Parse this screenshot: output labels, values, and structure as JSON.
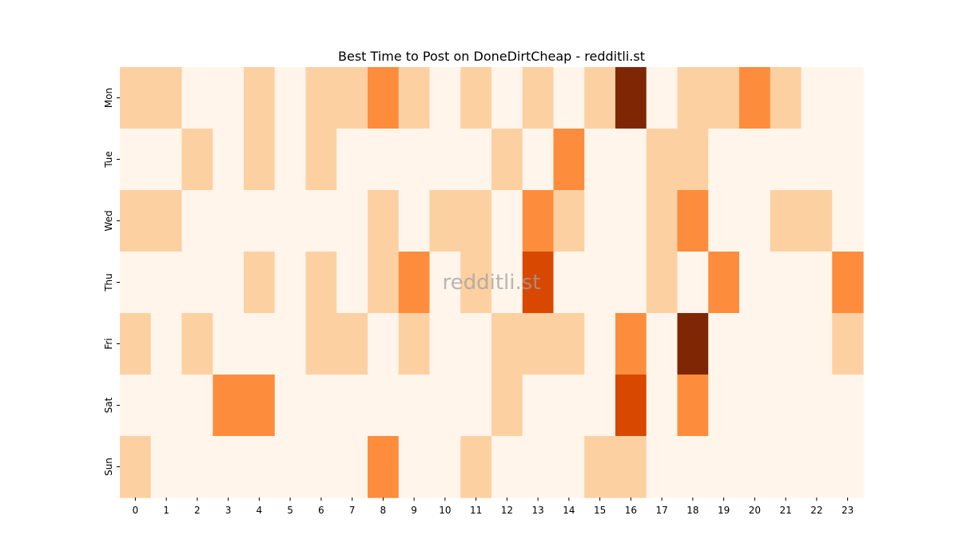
{
  "chart_data": {
    "type": "heatmap",
    "title": "Best Time to Post on DoneDirtCheap - redditli.st",
    "xlabel": "",
    "ylabel": "",
    "x_categories": [
      "0",
      "1",
      "2",
      "3",
      "4",
      "5",
      "6",
      "7",
      "8",
      "9",
      "10",
      "11",
      "12",
      "13",
      "14",
      "15",
      "16",
      "17",
      "18",
      "19",
      "20",
      "21",
      "22",
      "23"
    ],
    "y_categories": [
      "Mon",
      "Tue",
      "Wed",
      "Thu",
      "Fri",
      "Sat",
      "Sun"
    ],
    "values": [
      [
        1,
        1,
        0,
        0,
        1,
        0,
        1,
        1,
        2,
        1,
        0,
        1,
        0,
        1,
        0,
        1,
        4,
        0,
        1,
        1,
        2,
        1,
        0,
        0
      ],
      [
        0,
        0,
        1,
        0,
        1,
        0,
        1,
        0,
        0,
        0,
        0,
        0,
        1,
        0,
        2,
        0,
        0,
        1,
        1,
        0,
        0,
        0,
        0,
        0
      ],
      [
        1,
        1,
        0,
        0,
        0,
        0,
        0,
        0,
        1,
        0,
        1,
        1,
        0,
        2,
        1,
        0,
        0,
        1,
        2,
        0,
        0,
        1,
        1,
        0
      ],
      [
        0,
        0,
        0,
        0,
        1,
        0,
        1,
        0,
        1,
        2,
        0,
        1,
        0,
        3,
        0,
        0,
        0,
        1,
        0,
        2,
        0,
        0,
        0,
        2
      ],
      [
        1,
        0,
        1,
        0,
        0,
        0,
        1,
        1,
        0,
        1,
        0,
        0,
        1,
        1,
        1,
        0,
        2,
        0,
        4,
        0,
        0,
        0,
        0,
        1
      ],
      [
        0,
        0,
        0,
        2,
        2,
        0,
        0,
        0,
        0,
        0,
        0,
        0,
        1,
        0,
        0,
        0,
        3,
        0,
        2,
        0,
        0,
        0,
        0,
        0
      ],
      [
        1,
        0,
        0,
        0,
        0,
        0,
        0,
        0,
        2,
        0,
        0,
        1,
        0,
        0,
        0,
        1,
        1,
        0,
        0,
        0,
        0,
        0,
        0,
        0
      ]
    ],
    "color_scale": "Oranges",
    "colors": [
      "#fff5eb",
      "#fdd0a2",
      "#fd8d3c",
      "#d94801",
      "#7f2704"
    ],
    "legend": "none",
    "grid": false
  },
  "watermark": "redditli.st"
}
